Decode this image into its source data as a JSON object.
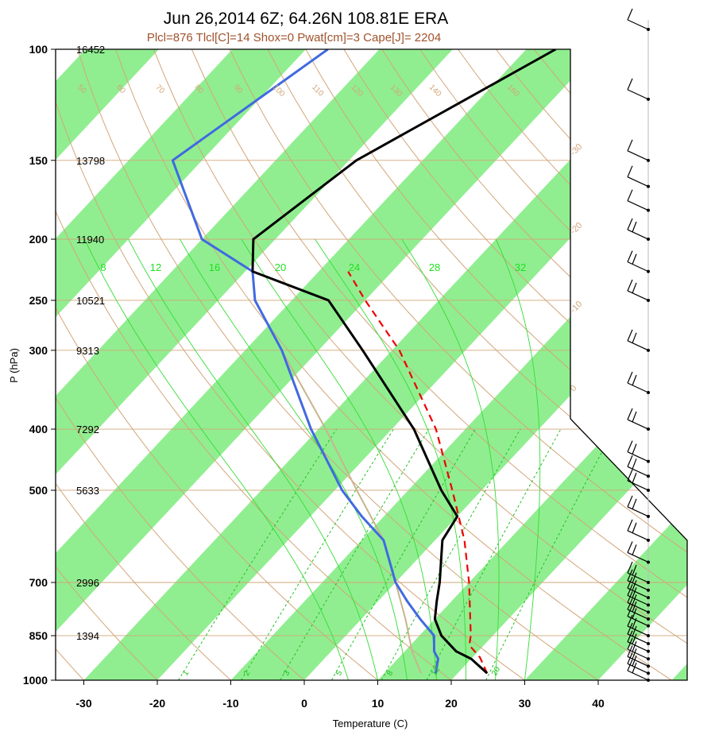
{
  "title": "Jun 26,2014 6Z; 64.26N 108.81E ERA",
  "subtitle": "Plcl=876 Tlcl[C]=14 Shox=0 Pwat[cm]=3 Cape[J]= 2204",
  "colors": {
    "isotherm_band": "#90ee90",
    "dry_adiabat": "#d2a679",
    "mixing_ratio": "#20c020",
    "moist_adiabat": "#33dd33",
    "temperature": "#000000",
    "dewpoint": "#4169e1",
    "parcel": "#ee0000",
    "env_tan": "#c8b48c",
    "label_brown": "#a0522d"
  },
  "chart_data": {
    "type": "skew-t log-p diagram",
    "xlabel": "Temperature (C)",
    "ylabel": "P (hPa)",
    "x_ticks": [
      -30,
      -20,
      -10,
      0,
      10,
      20,
      30,
      40
    ],
    "x_tick_labels": [
      "-30",
      "-20",
      "-10",
      "0",
      "10",
      "20",
      "30",
      "40"
    ],
    "y_ticks": [
      100,
      150,
      200,
      250,
      300,
      400,
      500,
      700,
      850,
      1000
    ],
    "y_tick_labels": [
      "100",
      "150",
      "200",
      "250",
      "300",
      "400",
      "500",
      "700",
      "850",
      "1000"
    ],
    "heights_m": [
      {
        "p": 100,
        "label": "16452"
      },
      {
        "p": 150,
        "label": "13798"
      },
      {
        "p": 200,
        "label": "11940"
      },
      {
        "p": 250,
        "label": "10521"
      },
      {
        "p": 300,
        "label": "9313"
      },
      {
        "p": 400,
        "label": "7292"
      },
      {
        "p": 500,
        "label": "5633"
      },
      {
        "p": 700,
        "label": "2996"
      },
      {
        "p": 850,
        "label": "1394"
      }
    ],
    "isotherm_labels_left": [
      {
        "t": 40,
        "label": "40"
      },
      {
        "t": 30,
        "label": "30"
      },
      {
        "t": 20,
        "label": "20"
      },
      {
        "t": 10,
        "label": "10"
      },
      {
        "t": 0,
        "label": "0"
      },
      {
        "t": -10,
        "label": "-10"
      },
      {
        "t": -20,
        "label": "-20"
      },
      {
        "t": -30,
        "label": "-30"
      }
    ],
    "isotherm_labels_right": [
      {
        "t": 30,
        "label": "30"
      },
      {
        "t": 20,
        "label": "20"
      },
      {
        "t": 10,
        "label": "10"
      },
      {
        "t": 0,
        "label": "0"
      },
      {
        "t": -10,
        "label": "-10"
      },
      {
        "t": -20,
        "label": "-20"
      },
      {
        "t": -30,
        "label": "-30"
      }
    ],
    "dry_adiabat_labels": [
      "50",
      "60",
      "70",
      "80",
      "90",
      "100",
      "110",
      "120",
      "130",
      "140",
      "160"
    ],
    "wet_bulb_labels": [
      "8",
      "12",
      "16",
      "20",
      "24",
      "28",
      "32"
    ],
    "mixing_ratio_labels": [
      "1",
      "2",
      "3",
      "5",
      "8",
      "12",
      "20"
    ],
    "series": [
      {
        "name": "temperature",
        "points": [
          {
            "p": 100,
            "t": -46
          },
          {
            "p": 150,
            "t": -59
          },
          {
            "p": 200,
            "t": -63
          },
          {
            "p": 225,
            "t": -59
          },
          {
            "p": 250,
            "t": -45
          },
          {
            "p": 300,
            "t": -34
          },
          {
            "p": 400,
            "t": -17
          },
          {
            "p": 500,
            "t": -5.5
          },
          {
            "p": 550,
            "t": 0
          },
          {
            "p": 600,
            "t": 1
          },
          {
            "p": 700,
            "t": 6
          },
          {
            "p": 750,
            "t": 8
          },
          {
            "p": 800,
            "t": 10
          },
          {
            "p": 850,
            "t": 13
          },
          {
            "p": 900,
            "t": 17
          },
          {
            "p": 925,
            "t": 20
          },
          {
            "p": 975,
            "t": 24
          }
        ]
      },
      {
        "name": "dewpoint",
        "points": [
          {
            "p": 100,
            "t": -77
          },
          {
            "p": 150,
            "t": -84
          },
          {
            "p": 200,
            "t": -70
          },
          {
            "p": 225,
            "t": -59
          },
          {
            "p": 250,
            "t": -55
          },
          {
            "p": 300,
            "t": -45
          },
          {
            "p": 400,
            "t": -31
          },
          {
            "p": 500,
            "t": -19
          },
          {
            "p": 550,
            "t": -13
          },
          {
            "p": 600,
            "t": -7
          },
          {
            "p": 700,
            "t": 0
          },
          {
            "p": 750,
            "t": 4
          },
          {
            "p": 800,
            "t": 8
          },
          {
            "p": 850,
            "t": 12
          },
          {
            "p": 900,
            "t": 14
          },
          {
            "p": 925,
            "t": 15.5
          },
          {
            "p": 975,
            "t": 17
          }
        ]
      },
      {
        "name": "parcel",
        "points": [
          {
            "p": 975,
            "t": 24
          },
          {
            "p": 920,
            "t": 21
          },
          {
            "p": 880,
            "t": 18
          },
          {
            "p": 850,
            "t": 17
          },
          {
            "p": 700,
            "t": 10
          },
          {
            "p": 600,
            "t": 4
          },
          {
            "p": 500,
            "t": -4
          },
          {
            "p": 400,
            "t": -14
          },
          {
            "p": 300,
            "t": -29
          },
          {
            "p": 250,
            "t": -40
          },
          {
            "p": 225,
            "t": -46
          }
        ]
      },
      {
        "name": "environment-tan",
        "points": [
          {
            "p": 975,
            "t": 15
          },
          {
            "p": 900,
            "t": 11
          },
          {
            "p": 800,
            "t": 6
          },
          {
            "p": 700,
            "t": 0
          },
          {
            "p": 600,
            "t": -7
          },
          {
            "p": 500,
            "t": -17
          },
          {
            "p": 400,
            "t": -29
          },
          {
            "p": 300,
            "t": -45
          },
          {
            "p": 250,
            "t": -55
          }
        ]
      }
    ],
    "wind_barbs_pressures": [
      100,
      120,
      150,
      165,
      180,
      200,
      225,
      250,
      300,
      350,
      400,
      450,
      475,
      500,
      550,
      600,
      650,
      700,
      720,
      740,
      760,
      780,
      800,
      820,
      850,
      875,
      900,
      925,
      950,
      975,
      1000
    ],
    "isotherm_band_step": 10,
    "grid": true
  }
}
